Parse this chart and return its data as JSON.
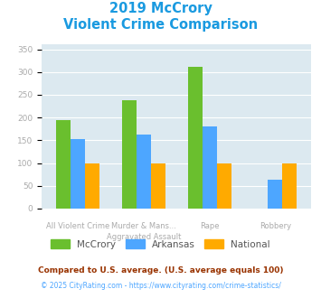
{
  "title_line1": "2019 McCrory",
  "title_line2": "Violent Crime Comparison",
  "series": {
    "McCrory": [
      195,
      238,
      312,
      0
    ],
    "Arkansas": [
      152,
      162,
      181,
      63
    ],
    "National": [
      100,
      100,
      100,
      100
    ]
  },
  "colors": {
    "McCrory": "#6abf2e",
    "Arkansas": "#4da6ff",
    "National": "#ffaa00"
  },
  "ylim": [
    0,
    360
  ],
  "yticks": [
    0,
    50,
    100,
    150,
    200,
    250,
    300,
    350
  ],
  "title_color": "#1a9ae0",
  "plot_bg": "#dce9f0",
  "grid_color": "#ffffff",
  "legend_labels": [
    "McCrory",
    "Arkansas",
    "National"
  ],
  "cat_labels_top": [
    "",
    "Murder & Mans...",
    "Rape",
    ""
  ],
  "cat_labels_bottom": [
    "All Violent Crime",
    "Aggravated Assault",
    "",
    "Robbery"
  ],
  "footnote1": "Compared to U.S. average. (U.S. average equals 100)",
  "footnote2": "© 2025 CityRating.com - https://www.cityrating.com/crime-statistics/",
  "footnote1_color": "#993300",
  "footnote2_color": "#4da6ff",
  "tick_label_color": "#aaaaaa",
  "legend_text_color": "#555555",
  "bar_width": 0.22
}
